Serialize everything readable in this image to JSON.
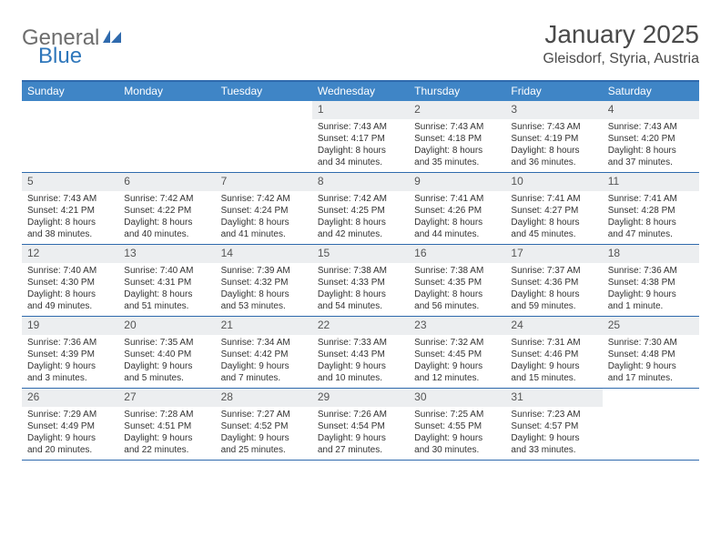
{
  "brand": {
    "part1": "General",
    "part2": "Blue"
  },
  "title": "January 2025",
  "location": "Gleisdorf, Styria, Austria",
  "colors": {
    "header_bg": "#3f85c6",
    "header_border": "#2f6aad",
    "daynum_bg": "#eceef0",
    "text": "#333333",
    "brand_gray": "#6d6d6d",
    "brand_blue": "#2f77bb"
  },
  "day_names": [
    "Sunday",
    "Monday",
    "Tuesday",
    "Wednesday",
    "Thursday",
    "Friday",
    "Saturday"
  ],
  "weeks": [
    [
      null,
      null,
      null,
      {
        "n": "1",
        "sr": "7:43 AM",
        "ss": "4:17 PM",
        "dl": "8 hours and 34 minutes."
      },
      {
        "n": "2",
        "sr": "7:43 AM",
        "ss": "4:18 PM",
        "dl": "8 hours and 35 minutes."
      },
      {
        "n": "3",
        "sr": "7:43 AM",
        "ss": "4:19 PM",
        "dl": "8 hours and 36 minutes."
      },
      {
        "n": "4",
        "sr": "7:43 AM",
        "ss": "4:20 PM",
        "dl": "8 hours and 37 minutes."
      }
    ],
    [
      {
        "n": "5",
        "sr": "7:43 AM",
        "ss": "4:21 PM",
        "dl": "8 hours and 38 minutes."
      },
      {
        "n": "6",
        "sr": "7:42 AM",
        "ss": "4:22 PM",
        "dl": "8 hours and 40 minutes."
      },
      {
        "n": "7",
        "sr": "7:42 AM",
        "ss": "4:24 PM",
        "dl": "8 hours and 41 minutes."
      },
      {
        "n": "8",
        "sr": "7:42 AM",
        "ss": "4:25 PM",
        "dl": "8 hours and 42 minutes."
      },
      {
        "n": "9",
        "sr": "7:41 AM",
        "ss": "4:26 PM",
        "dl": "8 hours and 44 minutes."
      },
      {
        "n": "10",
        "sr": "7:41 AM",
        "ss": "4:27 PM",
        "dl": "8 hours and 45 minutes."
      },
      {
        "n": "11",
        "sr": "7:41 AM",
        "ss": "4:28 PM",
        "dl": "8 hours and 47 minutes."
      }
    ],
    [
      {
        "n": "12",
        "sr": "7:40 AM",
        "ss": "4:30 PM",
        "dl": "8 hours and 49 minutes."
      },
      {
        "n": "13",
        "sr": "7:40 AM",
        "ss": "4:31 PM",
        "dl": "8 hours and 51 minutes."
      },
      {
        "n": "14",
        "sr": "7:39 AM",
        "ss": "4:32 PM",
        "dl": "8 hours and 53 minutes."
      },
      {
        "n": "15",
        "sr": "7:38 AM",
        "ss": "4:33 PM",
        "dl": "8 hours and 54 minutes."
      },
      {
        "n": "16",
        "sr": "7:38 AM",
        "ss": "4:35 PM",
        "dl": "8 hours and 56 minutes."
      },
      {
        "n": "17",
        "sr": "7:37 AM",
        "ss": "4:36 PM",
        "dl": "8 hours and 59 minutes."
      },
      {
        "n": "18",
        "sr": "7:36 AM",
        "ss": "4:38 PM",
        "dl": "9 hours and 1 minute."
      }
    ],
    [
      {
        "n": "19",
        "sr": "7:36 AM",
        "ss": "4:39 PM",
        "dl": "9 hours and 3 minutes."
      },
      {
        "n": "20",
        "sr": "7:35 AM",
        "ss": "4:40 PM",
        "dl": "9 hours and 5 minutes."
      },
      {
        "n": "21",
        "sr": "7:34 AM",
        "ss": "4:42 PM",
        "dl": "9 hours and 7 minutes."
      },
      {
        "n": "22",
        "sr": "7:33 AM",
        "ss": "4:43 PM",
        "dl": "9 hours and 10 minutes."
      },
      {
        "n": "23",
        "sr": "7:32 AM",
        "ss": "4:45 PM",
        "dl": "9 hours and 12 minutes."
      },
      {
        "n": "24",
        "sr": "7:31 AM",
        "ss": "4:46 PM",
        "dl": "9 hours and 15 minutes."
      },
      {
        "n": "25",
        "sr": "7:30 AM",
        "ss": "4:48 PM",
        "dl": "9 hours and 17 minutes."
      }
    ],
    [
      {
        "n": "26",
        "sr": "7:29 AM",
        "ss": "4:49 PM",
        "dl": "9 hours and 20 minutes."
      },
      {
        "n": "27",
        "sr": "7:28 AM",
        "ss": "4:51 PM",
        "dl": "9 hours and 22 minutes."
      },
      {
        "n": "28",
        "sr": "7:27 AM",
        "ss": "4:52 PM",
        "dl": "9 hours and 25 minutes."
      },
      {
        "n": "29",
        "sr": "7:26 AM",
        "ss": "4:54 PM",
        "dl": "9 hours and 27 minutes."
      },
      {
        "n": "30",
        "sr": "7:25 AM",
        "ss": "4:55 PM",
        "dl": "9 hours and 30 minutes."
      },
      {
        "n": "31",
        "sr": "7:23 AM",
        "ss": "4:57 PM",
        "dl": "9 hours and 33 minutes."
      },
      null
    ]
  ],
  "labels": {
    "sunrise": "Sunrise: ",
    "sunset": "Sunset: ",
    "daylight": "Daylight: "
  }
}
